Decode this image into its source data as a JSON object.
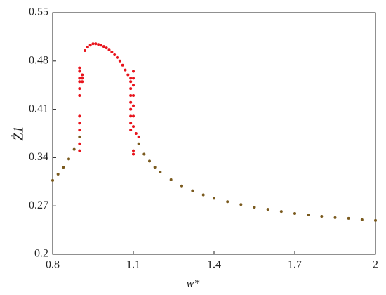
{
  "chart_data": {
    "type": "scatter",
    "xlabel": "w*",
    "ylabel": "Ż1",
    "xlim": [
      0.8,
      2
    ],
    "xticks": [
      0.8,
      1.1,
      1.4,
      1.7,
      2
    ],
    "ylim": [
      0.2,
      0.55
    ],
    "yticks": [
      0.2,
      0.27,
      0.34,
      0.41,
      0.48,
      0.55
    ],
    "series": [
      {
        "color": "#e8141c",
        "x": [
          0.92,
          0.93,
          0.94,
          0.95,
          0.96,
          0.97,
          0.98,
          0.99,
          1.0,
          1.01,
          1.02,
          1.03,
          1.04,
          1.05,
          1.06,
          1.07,
          1.08,
          0.9,
          0.9,
          0.9,
          0.9,
          0.9,
          0.9,
          0.9,
          0.9,
          0.9,
          0.9,
          0.9,
          0.91,
          0.91,
          0.91,
          1.09,
          1.09,
          1.09,
          1.09,
          1.09,
          1.09,
          1.09,
          1.09,
          1.09,
          1.1,
          1.1,
          1.1,
          1.1,
          1.1,
          1.1,
          1.1,
          1.1,
          1.1,
          1.11,
          1.12
        ],
        "values": [
          0.495,
          0.5,
          0.503,
          0.505,
          0.505,
          0.504,
          0.503,
          0.501,
          0.499,
          0.496,
          0.493,
          0.489,
          0.485,
          0.48,
          0.474,
          0.467,
          0.46,
          0.47,
          0.465,
          0.455,
          0.45,
          0.44,
          0.43,
          0.4,
          0.39,
          0.38,
          0.36,
          0.35,
          0.46,
          0.455,
          0.45,
          0.455,
          0.45,
          0.44,
          0.43,
          0.42,
          0.41,
          0.4,
          0.39,
          0.38,
          0.465,
          0.455,
          0.445,
          0.43,
          0.415,
          0.4,
          0.385,
          0.35,
          0.345,
          0.375,
          0.37
        ]
      },
      {
        "color": "#7a5a1e",
        "x": [
          0.8,
          0.82,
          0.84,
          0.86,
          0.88,
          0.9,
          1.12,
          1.14,
          1.16,
          1.18,
          1.2,
          1.24,
          1.28,
          1.32,
          1.36,
          1.4,
          1.45,
          1.5,
          1.55,
          1.6,
          1.65,
          1.7,
          1.75,
          1.8,
          1.85,
          1.9,
          1.95,
          2.0
        ],
        "values": [
          0.307,
          0.316,
          0.326,
          0.338,
          0.352,
          0.37,
          0.36,
          0.345,
          0.335,
          0.326,
          0.319,
          0.308,
          0.299,
          0.292,
          0.286,
          0.281,
          0.276,
          0.272,
          0.268,
          0.265,
          0.262,
          0.259,
          0.257,
          0.255,
          0.253,
          0.252,
          0.25,
          0.249
        ]
      }
    ]
  }
}
